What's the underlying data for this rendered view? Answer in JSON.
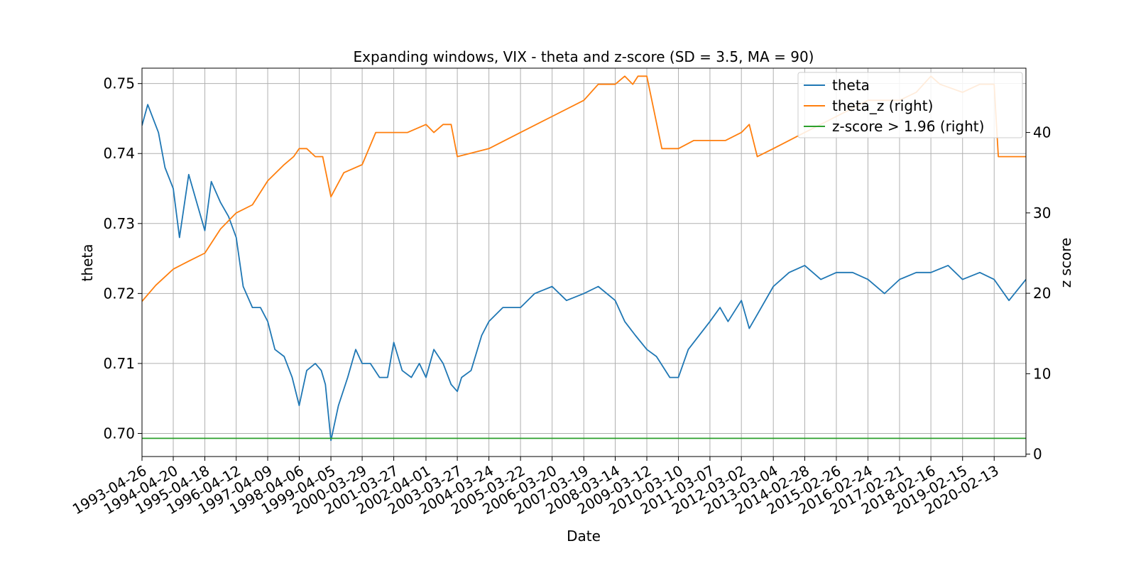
{
  "chart_data": {
    "type": "line",
    "title": "Expanding windows, VIX - theta and z-score (SD = 3.5, MA = 90)",
    "xlabel": "Date",
    "ylabel_left": "theta",
    "ylabel_right": "z score",
    "x_range": [
      "1993-04-26",
      "2021-02-12"
    ],
    "ylim_left": [
      0.6967,
      0.7522
    ],
    "ylim_right": [
      -0.3,
      48
    ],
    "grid": true,
    "legend_position": "top-right",
    "x_tick_labels": [
      "1993-04-26",
      "1994-04-20",
      "1995-04-18",
      "1996-04-12",
      "1997-04-09",
      "1998-04-06",
      "1999-04-05",
      "2000-03-29",
      "2001-03-27",
      "2002-04-01",
      "2003-03-27",
      "2004-03-24",
      "2005-03-22",
      "2006-03-20",
      "2007-03-19",
      "2008-03-14",
      "2009-03-12",
      "2010-03-10",
      "2011-03-07",
      "2012-03-02",
      "2013-03-04",
      "2014-02-28",
      "2015-02-26",
      "2016-02-24",
      "2017-02-21",
      "2018-02-16",
      "2019-02-15",
      "2020-02-13"
    ],
    "y_left_ticks": [
      0.7,
      0.71,
      0.72,
      0.73,
      0.74,
      0.75
    ],
    "y_left_tick_labels": [
      "0.70",
      "0.71",
      "0.72",
      "0.73",
      "0.74",
      "0.75"
    ],
    "y_right_ticks": [
      0,
      10,
      20,
      30,
      40
    ],
    "y_right_tick_labels": [
      "0",
      "10",
      "20",
      "30",
      "40"
    ],
    "series": [
      {
        "name": "theta",
        "axis": "left",
        "color": "#1f77b4",
        "x": [
          "1993-04-26",
          "1993-07-01",
          "1993-11-01",
          "1994-01-15",
          "1994-04-20",
          "1994-07-01",
          "1994-10-15",
          "1995-01-15",
          "1995-04-18",
          "1995-07-01",
          "1995-10-15",
          "1996-01-15",
          "1996-04-12",
          "1996-07-01",
          "1996-10-15",
          "1997-01-15",
          "1997-04-09",
          "1997-07-01",
          "1997-10-15",
          "1998-01-15",
          "1998-04-06",
          "1998-07-01",
          "1998-10-08",
          "1998-12-15",
          "1999-02-01",
          "1999-04-05",
          "1999-07-01",
          "1999-10-15",
          "2000-01-15",
          "2000-03-29",
          "2000-07-01",
          "2000-10-15",
          "2001-01-15",
          "2001-03-27",
          "2001-07-01",
          "2001-10-15",
          "2002-01-15",
          "2002-04-01",
          "2002-07-01",
          "2002-10-15",
          "2003-01-15",
          "2003-03-27",
          "2003-05-15",
          "2003-09-01",
          "2004-01-01",
          "2004-03-24",
          "2004-09-01",
          "2005-03-22",
          "2005-09-01",
          "2006-03-20",
          "2006-09-01",
          "2007-03-19",
          "2007-09-01",
          "2008-03-14",
          "2008-07-01",
          "2008-11-01",
          "2009-03-12",
          "2009-07-01",
          "2009-12-01",
          "2010-03-10",
          "2010-07-01",
          "2011-03-07",
          "2011-07-01",
          "2011-10-01",
          "2012-03-02",
          "2012-06-01",
          "2012-09-01",
          "2013-03-04",
          "2013-09-01",
          "2014-02-28",
          "2014-09-01",
          "2015-02-26",
          "2015-09-01",
          "2016-02-24",
          "2016-09-01",
          "2017-02-21",
          "2017-09-01",
          "2018-02-16",
          "2018-09-01",
          "2019-02-15",
          "2019-09-01",
          "2020-02-13",
          "2020-08-01",
          "2021-02-12"
        ],
        "values": [
          0.744,
          0.747,
          0.743,
          0.738,
          0.735,
          0.728,
          0.737,
          0.733,
          0.729,
          0.736,
          0.733,
          0.731,
          0.728,
          0.721,
          0.718,
          0.718,
          0.716,
          0.712,
          0.711,
          0.708,
          0.704,
          0.709,
          0.71,
          0.709,
          0.707,
          0.699,
          0.704,
          0.708,
          0.712,
          0.71,
          0.71,
          0.708,
          0.708,
          0.713,
          0.709,
          0.708,
          0.71,
          0.708,
          0.712,
          0.71,
          0.707,
          0.706,
          0.708,
          0.709,
          0.714,
          0.716,
          0.718,
          0.718,
          0.72,
          0.721,
          0.719,
          0.72,
          0.721,
          0.719,
          0.716,
          0.714,
          0.712,
          0.711,
          0.708,
          0.708,
          0.712,
          0.716,
          0.718,
          0.716,
          0.719,
          0.715,
          0.717,
          0.721,
          0.723,
          0.724,
          0.722,
          0.723,
          0.723,
          0.722,
          0.72,
          0.722,
          0.723,
          0.723,
          0.724,
          0.722,
          0.723,
          0.722,
          0.719,
          0.722
        ]
      },
      {
        "name": "theta_z (right)",
        "axis": "right",
        "color": "#ff7f0e",
        "x": [
          "1993-04-26",
          "1993-10-01",
          "1994-04-20",
          "1994-10-15",
          "1995-04-18",
          "1995-10-15",
          "1996-04-12",
          "1996-10-15",
          "1997-04-09",
          "1997-10-15",
          "1998-02-01",
          "1998-04-06",
          "1998-07-01",
          "1998-10-08",
          "1999-01-01",
          "1999-04-05",
          "1999-09-01",
          "2000-03-29",
          "2000-09-01",
          "2001-03-27",
          "2001-09-01",
          "2002-04-01",
          "2002-07-01",
          "2002-10-15",
          "2003-01-15",
          "2003-03-27",
          "2004-03-24",
          "2005-03-22",
          "2006-03-20",
          "2007-03-19",
          "2007-09-01",
          "2008-03-14",
          "2008-07-01",
          "2008-10-01",
          "2008-12-01",
          "2009-03-12",
          "2009-09-01",
          "2010-03-10",
          "2010-09-01",
          "2011-03-07",
          "2011-09-01",
          "2012-03-02",
          "2012-06-01",
          "2012-09-01",
          "2013-03-04",
          "2014-02-28",
          "2015-02-26",
          "2016-02-24",
          "2017-02-21",
          "2017-09-01",
          "2018-02-16",
          "2018-06-01",
          "2019-02-15",
          "2019-09-01",
          "2020-02-13",
          "2020-04-01",
          "2021-02-12"
        ],
        "values": [
          19,
          21,
          23,
          24,
          25,
          28,
          30,
          31,
          34,
          36,
          37,
          38,
          38,
          37,
          37,
          32,
          35,
          36,
          40,
          40,
          40,
          41,
          40,
          41,
          41,
          37,
          38,
          40,
          42,
          44,
          46,
          46,
          47,
          46,
          47,
          47,
          38,
          38,
          39,
          39,
          39,
          40,
          41,
          37,
          38,
          40,
          42,
          44,
          44,
          45,
          47,
          46,
          45,
          46,
          46,
          37,
          37
        ]
      },
      {
        "name": "z-score > 1.96 (right)",
        "axis": "right",
        "color": "#2ca02c",
        "x": [
          "1993-04-26",
          "2021-02-12"
        ],
        "values": [
          1.96,
          1.96
        ]
      }
    ]
  }
}
